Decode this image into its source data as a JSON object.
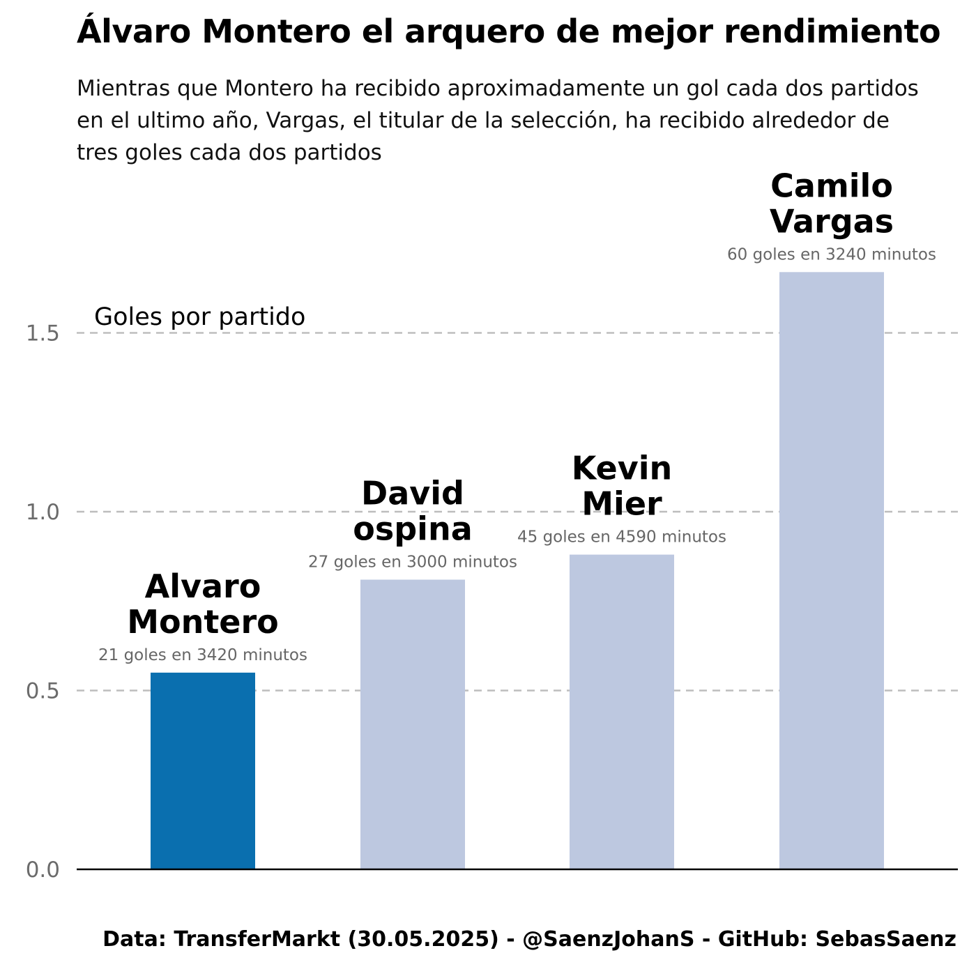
{
  "chart_data": {
    "type": "bar",
    "title": "Álvaro Montero el arquero de mejor rendimiento",
    "subtitle": "Mientras que Montero ha recibido aproximadamente un gol cada dos partidos en el ultimo año, Vargas, el titular de la selección, ha recibido alrededor de tres goles cada dos partidos",
    "ylabel": "Goles por partido",
    "xlabel": "",
    "ylim": [
      0,
      1.75
    ],
    "yticks": [
      0.0,
      0.5,
      1.0,
      1.5
    ],
    "ytick_labels": [
      "0.0",
      "0.5",
      "1.0",
      "1.5"
    ],
    "grid": "horizontal dashed",
    "categories": [
      "Alvaro Montero",
      "David ospina",
      "Kevin Mier",
      "Camilo Vargas"
    ],
    "bar_labels": [
      [
        "Alvaro",
        "Montero"
      ],
      [
        "David",
        "ospina"
      ],
      [
        "Kevin",
        "Mier"
      ],
      [
        "Camilo",
        "Vargas"
      ]
    ],
    "values": [
      0.55,
      0.81,
      0.88,
      1.67
    ],
    "annotations": [
      "21 goles en 3420 minutos",
      "27 goles en 3000 minutos",
      "45 goles en 4590 minutos",
      "60 goles en 3240 minutos"
    ],
    "colors": [
      "#0a6faf",
      "#bdc8e0",
      "#bdc8e0",
      "#bdc8e0"
    ],
    "caption": "Data: TransferMarkt (30.05.2025) - @SaenzJohanS - GitHub: SebasSaenz"
  }
}
